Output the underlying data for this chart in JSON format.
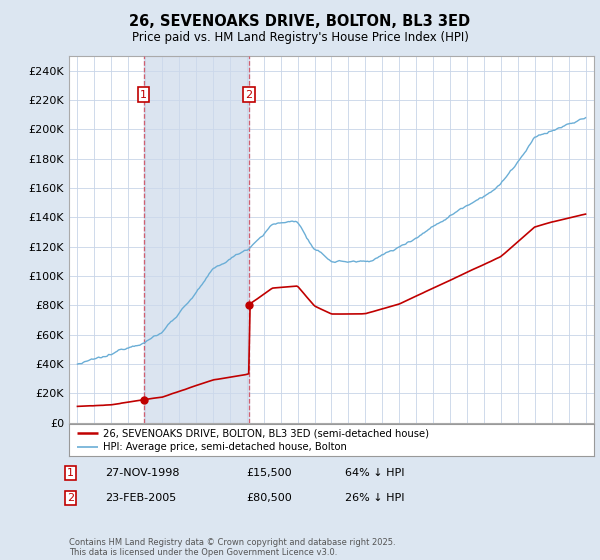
{
  "title": "26, SEVENOAKS DRIVE, BOLTON, BL3 3ED",
  "subtitle": "Price paid vs. HM Land Registry's House Price Index (HPI)",
  "sale1_label": "27-NOV-1998",
  "sale1_price": 15500,
  "sale1_year": 1998.9,
  "sale1_hpi_text": "64% ↓ HPI",
  "sale2_label": "23-FEB-2005",
  "sale2_price": 80500,
  "sale2_year": 2005.12,
  "sale2_hpi_text": "26% ↓ HPI",
  "legend_entry1": "26, SEVENOAKS DRIVE, BOLTON, BL3 3ED (semi-detached house)",
  "legend_entry2": "HPI: Average price, semi-detached house, Bolton",
  "footer": "Contains HM Land Registry data © Crown copyright and database right 2025.\nThis data is licensed under the Open Government Licence v3.0.",
  "hpi_color": "#6baed6",
  "price_color": "#c00000",
  "vline_color": "#d06070",
  "shade_color": "#cdd9eb",
  "background_color": "#dce6f1",
  "plot_bg_color": "#ffffff",
  "ylim_min": 0,
  "ylim_max": 250000,
  "xlim_min": 1994.5,
  "xlim_max": 2025.5
}
